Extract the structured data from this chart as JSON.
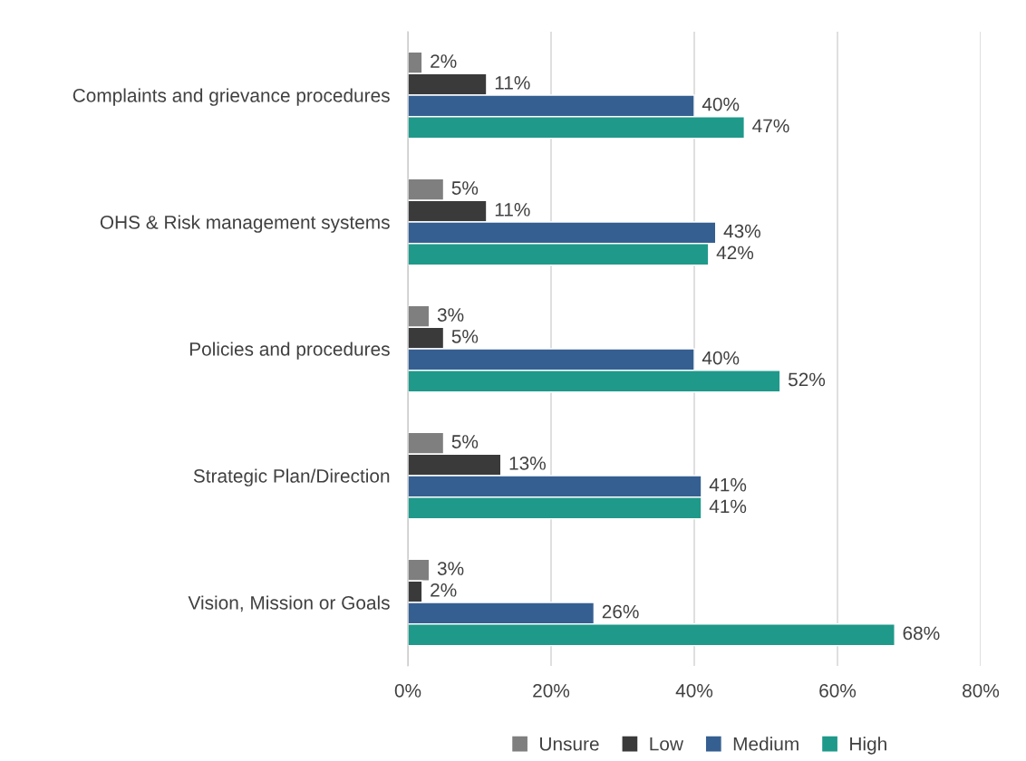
{
  "chart_data": {
    "type": "bar",
    "orientation": "horizontal",
    "categories": [
      "Complaints and grievance procedures",
      "OHS & Risk management systems",
      "Policies and procedures",
      "Strategic Plan/Direction",
      "Vision, Mission or Goals"
    ],
    "series": [
      {
        "name": "Unsure",
        "color": "#7f7f7f",
        "values": [
          2,
          5,
          3,
          5,
          3
        ],
        "value_labels": [
          "2%",
          "5%",
          "3%",
          "5%",
          "3%"
        ]
      },
      {
        "name": "Low",
        "color": "#3a3a3a",
        "values": [
          11,
          11,
          5,
          13,
          2
        ],
        "value_labels": [
          "11%",
          "11%",
          "5%",
          "13%",
          "2%"
        ]
      },
      {
        "name": "Medium",
        "color": "#355f91",
        "values": [
          40,
          43,
          40,
          41,
          26
        ],
        "value_labels": [
          "40%",
          "43%",
          "40%",
          "41%",
          "26%"
        ]
      },
      {
        "name": "High",
        "color": "#1f998a",
        "values": [
          47,
          42,
          52,
          41,
          68
        ],
        "value_labels": [
          "47%",
          "42%",
          "52%",
          "41%",
          "68%"
        ]
      }
    ],
    "xlim": [
      0,
      80
    ],
    "xticks": [
      {
        "value": 0,
        "label": "0%"
      },
      {
        "value": 20,
        "label": "20%"
      },
      {
        "value": 40,
        "label": "40%"
      },
      {
        "value": 60,
        "label": "60%"
      },
      {
        "value": 80,
        "label": "80%"
      }
    ],
    "grid": "x",
    "legend": "bottom"
  }
}
